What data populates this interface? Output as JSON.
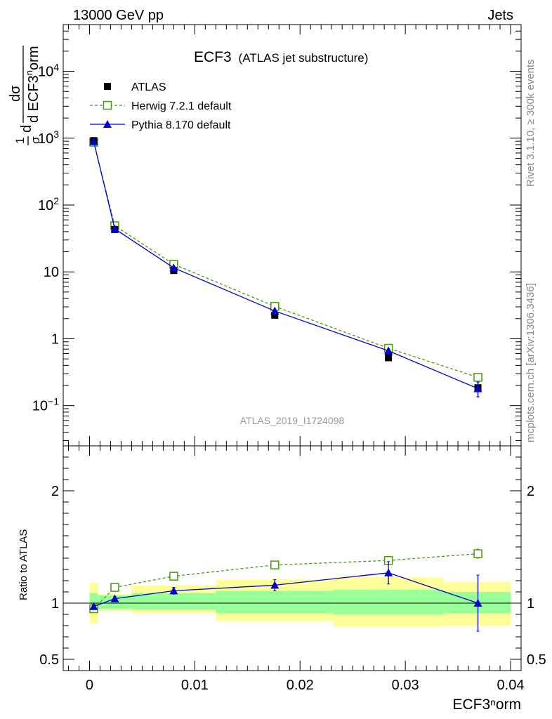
{
  "header": {
    "left": "13000 GeV pp",
    "right": "Jets"
  },
  "side_labels": {
    "rivet": "Rivet 3.1.10, ≥ 300k events",
    "mcplots": "mcplots.cern.ch [arXiv:1306.3436]"
  },
  "chart_data": [
    {
      "type": "scatter",
      "title": "ECF3",
      "subtitle": "(ATLAS jet substructure)",
      "watermark": "ATLAS_2019_I1724098",
      "xlabel": "ECF3ⁿorm",
      "ylabel": "1/σ dσ / d ECF3ⁿorm",
      "ylabel_parts": {
        "one": "1",
        "sigma": "σ",
        "d": "d",
        "dsigma": "dσ",
        "dvar": "d ECF3",
        "sup": "n",
        "tail": "orm"
      },
      "xlim": [
        -0.0025,
        0.041
      ],
      "ylim_log": [
        0.025,
        50000
      ],
      "log_y": true,
      "yticks": [
        {
          "value": 10000,
          "label": "10⁴"
        },
        {
          "value": 1000,
          "label": "10³"
        },
        {
          "value": 100,
          "label": "10²"
        },
        {
          "value": 10,
          "label": "10"
        },
        {
          "value": 1,
          "label": "1"
        },
        {
          "value": 0.1,
          "label": "10⁻¹"
        }
      ],
      "legend_position": "top-left",
      "series": [
        {
          "name": "ATLAS",
          "color": "#000000",
          "marker": "square-filled",
          "x": [
            0.0004,
            0.0024,
            0.008,
            0.0176,
            0.0284,
            0.0369
          ],
          "y": [
            920,
            43,
            10.5,
            2.25,
            0.52,
            0.185
          ],
          "yerr": [
            0,
            0,
            0,
            0,
            0,
            0
          ]
        },
        {
          "name": "Herwig 7.2.1 default",
          "color": "#4a9a10",
          "marker": "square-open",
          "line": "dashed",
          "x": [
            0.0004,
            0.0024,
            0.008,
            0.0176,
            0.0284,
            0.0369
          ],
          "y": [
            870,
            49,
            13,
            3.05,
            0.72,
            0.265
          ]
        },
        {
          "name": "Pythia 8.170 default",
          "color": "#0000cc",
          "marker": "triangle-filled",
          "line": "solid",
          "x": [
            0.0004,
            0.0024,
            0.008,
            0.0176,
            0.0284,
            0.0369
          ],
          "y": [
            890,
            44,
            11.5,
            2.6,
            0.66,
            0.18
          ],
          "yerr": [
            0,
            0,
            0,
            0,
            0,
            0.045
          ]
        }
      ]
    },
    {
      "type": "scatter",
      "ylabel": "Ratio to ATLAS",
      "xlim": [
        -0.0025,
        0.041
      ],
      "ylim": [
        0.4,
        2.4
      ],
      "yticks": [
        {
          "value": 0.5,
          "label": "0.5"
        },
        {
          "value": 1,
          "label": "1"
        },
        {
          "value": 2,
          "label": "2"
        }
      ],
      "xticks": [
        {
          "value": 0,
          "label": "0"
        },
        {
          "value": 0.01,
          "label": "0.01"
        },
        {
          "value": 0.02,
          "label": "0.02"
        },
        {
          "value": 0.03,
          "label": "0.03"
        },
        {
          "value": 0.04,
          "label": "0.04"
        }
      ],
      "bins": [
        {
          "lo": 0.0,
          "hi": 0.0008,
          "in_lo": 0.93,
          "in_hi": 1.09,
          "out_lo": 0.82,
          "out_hi": 1.18
        },
        {
          "lo": 0.0008,
          "hi": 0.004,
          "in_lo": 0.95,
          "in_hi": 1.07,
          "out_lo": 0.93,
          "out_hi": 1.08
        },
        {
          "lo": 0.004,
          "hi": 0.012,
          "in_lo": 0.94,
          "in_hi": 1.09,
          "out_lo": 0.91,
          "out_hi": 1.16
        },
        {
          "lo": 0.012,
          "hi": 0.0232,
          "in_lo": 0.91,
          "in_hi": 1.11,
          "out_lo": 0.84,
          "out_hi": 1.21
        },
        {
          "lo": 0.0232,
          "hi": 0.0336,
          "in_lo": 0.9,
          "in_hi": 1.12,
          "out_lo": 0.79,
          "out_hi": 1.23
        },
        {
          "lo": 0.0336,
          "hi": 0.04,
          "in_lo": 0.91,
          "in_hi": 1.1,
          "out_lo": 0.8,
          "out_hi": 1.19
        }
      ],
      "band_colors": {
        "inner": "#99ff99",
        "outer": "#ffff99"
      },
      "series": [
        {
          "name": "Herwig 7.2.1 default",
          "color": "#4a9a10",
          "marker": "square-open",
          "line": "dashed",
          "x": [
            0.0004,
            0.0024,
            0.008,
            0.0176,
            0.0284,
            0.0369
          ],
          "y": [
            0.95,
            1.14,
            1.24,
            1.34,
            1.38,
            1.44
          ],
          "yerr": [
            0,
            0,
            0,
            0,
            0,
            0.04
          ]
        },
        {
          "name": "Pythia 8.170 default",
          "color": "#0000cc",
          "marker": "triangle-filled",
          "line": "solid",
          "x": [
            0.0004,
            0.0024,
            0.008,
            0.0176,
            0.0284,
            0.0369
          ],
          "y": [
            0.97,
            1.04,
            1.11,
            1.16,
            1.27,
            1.0
          ],
          "yerr": [
            0.02,
            0.02,
            0.03,
            0.05,
            0.1,
            0.25
          ]
        }
      ]
    }
  ]
}
